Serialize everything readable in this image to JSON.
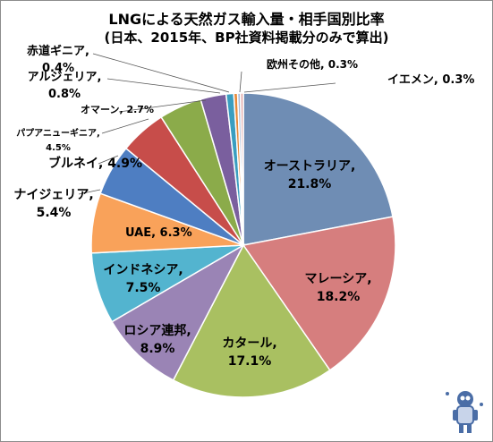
{
  "title": "LNGによる天然ガス輸入量・相手国別比率",
  "subtitle": "(日本、2015年、BP社資料掲載分のみで算出)",
  "chart_data": {
    "type": "pie",
    "title": "LNGによる天然ガス輸入量・相手国別比率",
    "subtitle": "(日本、2015年、BP社資料掲載分のみで算出)",
    "unit": "%",
    "slices": [
      {
        "name": "オーストラリア",
        "value": 21.8,
        "label": "21.8%",
        "color": "#6f8db4"
      },
      {
        "name": "マレーシア",
        "value": 18.2,
        "label": "18.2%",
        "color": "#d67e7e"
      },
      {
        "name": "カタール",
        "value": 17.1,
        "label": "17.1%",
        "color": "#a9c061"
      },
      {
        "name": "ロシア連邦",
        "value": 8.9,
        "label": "8.9%",
        "color": "#9a84b5"
      },
      {
        "name": "インドネシア",
        "value": 7.5,
        "label": "7.5%",
        "color": "#53b4cf"
      },
      {
        "name": "UAE",
        "value": 6.3,
        "label": "6.3%",
        "color": "#f9a25a"
      },
      {
        "name": "ナイジェリア",
        "value": 5.4,
        "label": "5.4%",
        "color": "#4e7ec2"
      },
      {
        "name": "ブルネイ",
        "value": 4.9,
        "label": "4.9%",
        "color": "#c74d4a"
      },
      {
        "name": "パプアニューギニア",
        "value": 4.5,
        "label": "4.5%",
        "color": "#8bab4a"
      },
      {
        "name": "オマーン",
        "value": 2.7,
        "label": "2.7%",
        "color": "#7a5f9e"
      },
      {
        "name": "アルジェリア",
        "value": 0.8,
        "label": "0.8%",
        "color": "#3a9ec0"
      },
      {
        "name": "赤道ギニア",
        "value": 0.4,
        "label": "0.4%",
        "color": "#e78a3a"
      },
      {
        "name": "欧州その他",
        "value": 0.3,
        "label": "0.3%",
        "color": "#a8bcd8"
      },
      {
        "name": "イエメン",
        "value": 0.3,
        "label": "0.3%",
        "color": "#e3a9a8"
      }
    ]
  }
}
